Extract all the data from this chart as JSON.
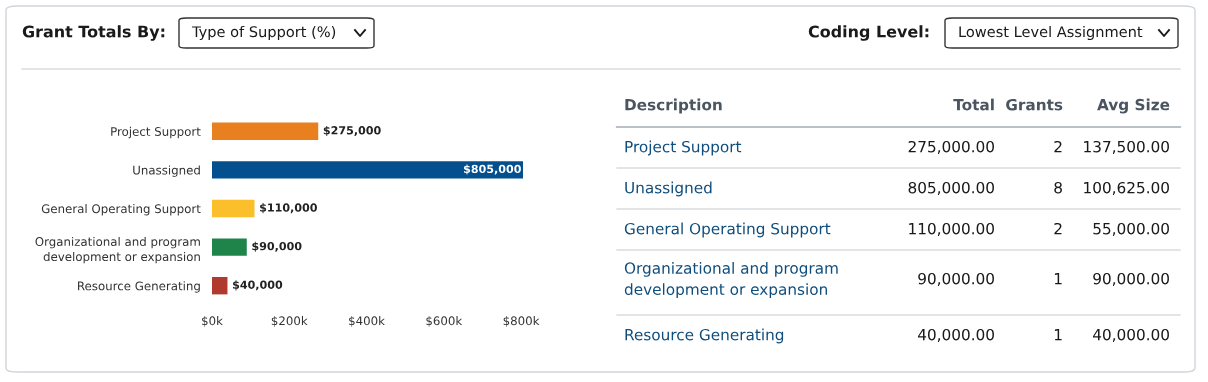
{
  "chart_data": [
    {
      "type": "other",
      "annotations": [
        "Grant Totals By:",
        "Type of Support (%)",
        "Coding Level:",
        "Lowest Level Assignment"
      ]
    },
    {
      "type": "bar",
      "orientation": "horizontal",
      "categories": [
        "Project Support",
        "Unassigned",
        "General Operating Support",
        "Organizational and program\ndevelopment or expansion",
        "Resource Generating"
      ],
      "values": [
        275000,
        805000,
        110000,
        90000,
        40000
      ],
      "colors": [
        "#e8801f",
        "#04508f",
        "#fbbf2c",
        "#1e8449",
        "#b03a2e"
      ],
      "value_labels": [
        "$275,000",
        "$805,000",
        "$110,000",
        "$90,000",
        "$40,000"
      ],
      "xlim": [
        0,
        805000
      ],
      "xticks": [
        {
          "value": 0,
          "label": "$0k"
        },
        {
          "value": 200000,
          "label": "$200k"
        },
        {
          "value": 400000,
          "label": "$400k"
        },
        {
          "value": 600000,
          "label": "$600k"
        },
        {
          "value": 800000,
          "label": "$800k"
        }
      ],
      "grid": false
    },
    {
      "type": "other",
      "annotations": [
        "Description",
        "Total",
        "Grants",
        "Avg Size",
        "Project Support",
        "275,000.00",
        "2",
        "137,500.00",
        "Unassigned",
        "805,000.00",
        "8",
        "100,625.00",
        "General Operating Support",
        "110,000.00",
        "2",
        "55,000.00",
        "Organizational and program\ndevelopment or expansion",
        "90,000.00",
        "1",
        "90,000.00",
        "Resource Generating",
        "40,000.00",
        "1",
        "40,000.00"
      ]
    }
  ]
}
